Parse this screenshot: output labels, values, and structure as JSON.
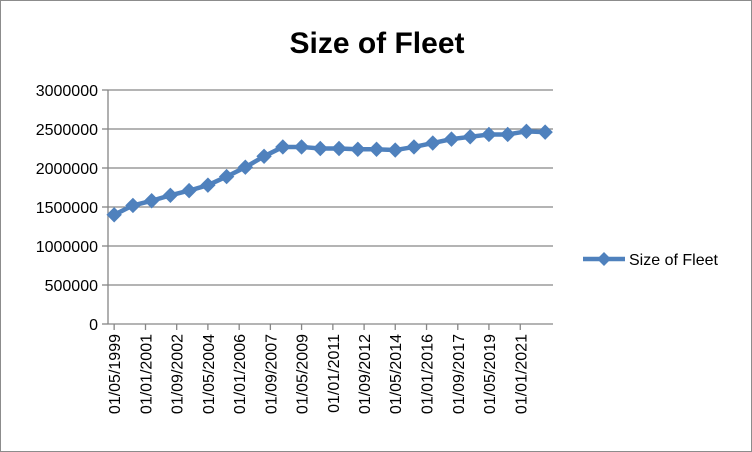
{
  "chart_data": {
    "type": "line",
    "title": "Size of Fleet",
    "xlabel": "",
    "ylabel": "",
    "ylim": [
      0,
      3000000
    ],
    "yticks": [
      0,
      500000,
      1000000,
      1500000,
      2000000,
      2500000,
      3000000
    ],
    "ytick_labels": [
      "0",
      "500000",
      "1000000",
      "1500000",
      "2000000",
      "2500000",
      "3000000"
    ],
    "xlim": [
      "1999-01-01",
      "2022-10-01"
    ],
    "xticks": [
      "1999-05-01",
      "2001-01-01",
      "2002-09-01",
      "2004-05-01",
      "2006-01-01",
      "2007-09-01",
      "2009-05-01",
      "2011-01-01",
      "2012-09-01",
      "2014-05-01",
      "2016-01-01",
      "2017-09-01",
      "2019-05-01",
      "2021-01-01"
    ],
    "xtick_labels": [
      "01/05/1999",
      "01/01/2001",
      "01/09/2002",
      "01/05/2004",
      "01/01/2006",
      "01/09/2007",
      "01/05/2009",
      "01/01/2011",
      "01/09/2012",
      "01/05/2014",
      "01/01/2016",
      "01/09/2017",
      "01/05/2019",
      "01/01/2021"
    ],
    "grid": "horizontal",
    "legend_position": "right",
    "series": [
      {
        "name": "Size of Fleet",
        "color": "#4f81bd",
        "marker": "diamond",
        "x": [
          "1999-05-01",
          "2000-05-01",
          "2001-05-01",
          "2002-05-01",
          "2003-05-01",
          "2004-05-01",
          "2005-05-01",
          "2006-05-01",
          "2007-05-01",
          "2008-05-01",
          "2009-05-01",
          "2010-05-01",
          "2011-05-01",
          "2012-05-01",
          "2013-05-01",
          "2014-05-01",
          "2015-05-01",
          "2016-05-01",
          "2017-05-01",
          "2018-05-01",
          "2019-05-01",
          "2020-05-01",
          "2021-05-01",
          "2022-05-01"
        ],
        "values": [
          1400000,
          1520000,
          1580000,
          1650000,
          1710000,
          1780000,
          1890000,
          2010000,
          2150000,
          2270000,
          2270000,
          2250000,
          2250000,
          2240000,
          2240000,
          2230000,
          2270000,
          2320000,
          2370000,
          2400000,
          2430000,
          2430000,
          2470000,
          2460000
        ]
      }
    ]
  }
}
